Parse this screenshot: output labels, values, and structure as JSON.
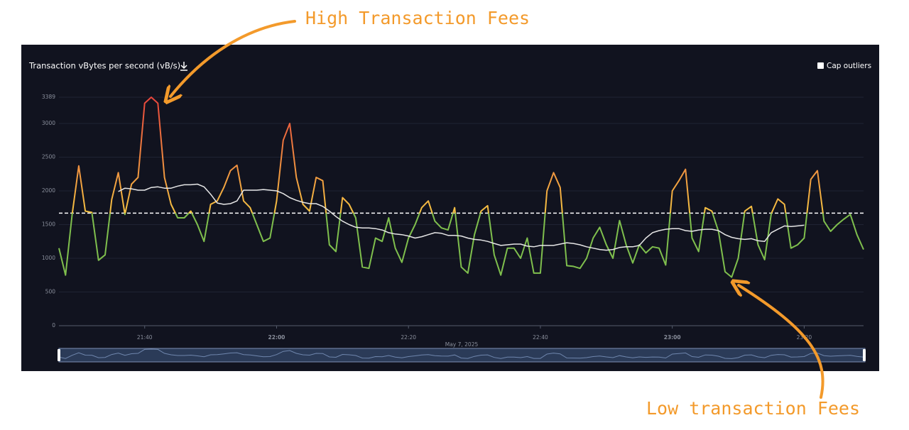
{
  "chart_data": {
    "type": "line",
    "title": "Transaction vBytes per second (vB/s)",
    "cap_outliers_label": "Cap outliers",
    "date_label": "May 7, 2025",
    "annotations": [
      "High Transaction Fees",
      "Low transaction Fees"
    ],
    "x": [
      "21:27",
      "21:28",
      "21:29",
      "21:30",
      "21:31",
      "21:32",
      "21:33",
      "21:34",
      "21:35",
      "21:36",
      "21:37",
      "21:38",
      "21:39",
      "21:40",
      "21:41",
      "21:42",
      "21:43",
      "21:44",
      "21:45",
      "21:46",
      "21:47",
      "21:48",
      "21:49",
      "21:50",
      "21:51",
      "21:52",
      "21:53",
      "21:54",
      "21:55",
      "21:56",
      "21:57",
      "21:58",
      "21:59",
      "22:00",
      "22:01",
      "22:02",
      "22:03",
      "22:04",
      "22:05",
      "22:06",
      "22:07",
      "22:08",
      "22:09",
      "22:10",
      "22:11",
      "22:12",
      "22:13",
      "22:14",
      "22:15",
      "22:16",
      "22:17",
      "22:18",
      "22:19",
      "22:20",
      "22:21",
      "22:22",
      "22:23",
      "22:24",
      "22:25",
      "22:26",
      "22:27",
      "22:28",
      "22:29",
      "22:30",
      "22:31",
      "22:32",
      "22:33",
      "22:34",
      "22:35",
      "22:36",
      "22:37",
      "22:38",
      "22:39",
      "22:40",
      "22:41",
      "22:42",
      "22:43",
      "22:44",
      "22:45",
      "22:46",
      "22:47",
      "22:48",
      "22:49",
      "22:50",
      "22:51",
      "22:52",
      "22:53",
      "22:54",
      "22:55",
      "22:56",
      "22:57",
      "22:58",
      "22:59",
      "23:00",
      "23:01",
      "23:02",
      "23:03",
      "23:04",
      "23:05",
      "23:06",
      "23:07",
      "23:08",
      "23:09",
      "23:10",
      "23:11",
      "23:12",
      "23:13",
      "23:14",
      "23:15",
      "23:16",
      "23:17",
      "23:18",
      "23:19",
      "23:20",
      "23:21",
      "23:22",
      "23:23",
      "23:24",
      "23:25",
      "23:26",
      "23:27",
      "23:28",
      "23:29"
    ],
    "series": [
      {
        "gradient": [
          "#7fbf4d",
          "#f5c242",
          "#e8453c"
        ],
        "values": [
          1150,
          750,
          1650,
          2370,
          1700,
          1680,
          970,
          1050,
          1870,
          2270,
          1650,
          2100,
          2200,
          3300,
          3389,
          3300,
          2200,
          1800,
          1600,
          1600,
          1700,
          1500,
          1250,
          1800,
          1850,
          2050,
          2300,
          2380,
          1850,
          1750,
          1500,
          1250,
          1300,
          1850,
          2750,
          3000,
          2200,
          1800,
          1700,
          2200,
          2150,
          1200,
          1100,
          1900,
          1800,
          1600,
          870,
          850,
          1300,
          1250,
          1600,
          1150,
          940,
          1300,
          1500,
          1750,
          1850,
          1550,
          1450,
          1420,
          1750,
          870,
          780,
          1350,
          1700,
          1780,
          1050,
          750,
          1150,
          1150,
          1000,
          1300,
          780,
          780,
          2000,
          2270,
          2050,
          890,
          880,
          850,
          1000,
          1300,
          1460,
          1200,
          1000,
          1560,
          1200,
          930,
          1200,
          1080,
          1170,
          1150,
          900,
          2000,
          2150,
          2320,
          1300,
          1100,
          1750,
          1700,
          1400,
          800,
          720,
          1000,
          1700,
          1770,
          1200,
          980,
          1660,
          1880,
          1800,
          1150,
          1200,
          1300,
          2170,
          2300,
          1550,
          1400,
          1500,
          1580,
          1650,
          1350,
          1130
        ]
      },
      {
        "color": "#e6e6e6",
        "values": [
          null,
          null,
          null,
          null,
          null,
          null,
          null,
          null,
          null,
          1990,
          2040,
          2030,
          2010,
          2010,
          2050,
          2060,
          2040,
          2040,
          2070,
          2090,
          2090,
          2100,
          2060,
          1950,
          1820,
          1800,
          1810,
          1850,
          2010,
          2010,
          2010,
          2020,
          2010,
          2000,
          1960,
          1900,
          1860,
          1830,
          1810,
          1810,
          1770,
          1700,
          1620,
          1550,
          1500,
          1460,
          1450,
          1450,
          1440,
          1420,
          1380,
          1360,
          1350,
          1330,
          1300,
          1320,
          1350,
          1380,
          1370,
          1340,
          1340,
          1330,
          1300,
          1280,
          1270,
          1250,
          1220,
          1190,
          1200,
          1210,
          1210,
          1180,
          1170,
          1190,
          1190,
          1190,
          1210,
          1230,
          1220,
          1200,
          1170,
          1150,
          1130,
          1120,
          1130,
          1160,
          1170,
          1170,
          1190,
          1300,
          1380,
          1410,
          1430,
          1440,
          1440,
          1410,
          1400,
          1420,
          1430,
          1430,
          1410,
          1350,
          1310,
          1290,
          1280,
          1290,
          1260,
          1250,
          1380,
          1430,
          1480,
          1470,
          1480,
          1490,
          null,
          null,
          null,
          null,
          null,
          null,
          null,
          null,
          null
        ]
      }
    ],
    "reference_line": 1670,
    "ylim": [
      0,
      3389
    ],
    "yticks": [
      0,
      500,
      1000,
      1500,
      2000,
      2500,
      3000,
      3389
    ],
    "xlim": [
      "21:27",
      "23:29"
    ],
    "xticks": [
      "21:40",
      "22:00",
      "22:20",
      "22:40",
      "23:00",
      "23:20"
    ],
    "grid": true
  }
}
